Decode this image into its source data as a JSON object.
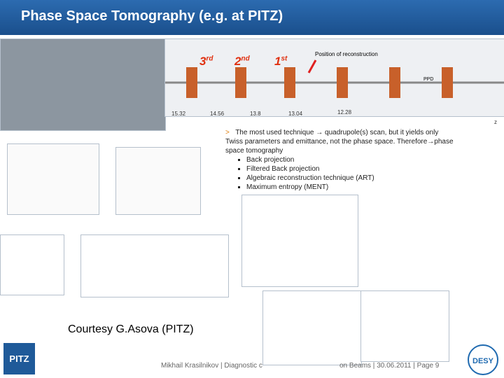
{
  "header": {
    "title": "Phase Space Tomography (e.g. at PITZ)"
  },
  "beamline": {
    "ordinals": [
      {
        "base": "3",
        "sup": "rd"
      },
      {
        "base": "2",
        "sup": "nd"
      },
      {
        "base": "1",
        "sup": "st"
      }
    ],
    "annotation": "Position of reconstruction",
    "device": "PPD",
    "positions": [
      "15.32",
      "14.56",
      "13.8",
      "13.04",
      "12.28"
    ],
    "axis": "z"
  },
  "bullets": {
    "main": "The most used technique → quadrupole(s) scan, but it yields only Twiss parameters and emittance, not the phase space. Therefore→phase space tomography",
    "items": [
      "Back projection",
      "Filtered Back projection",
      "Algebraic reconstruction technique (ART)",
      "Maximum entropy (MENT)"
    ]
  },
  "credit": "Courtesy G.Asova (PITZ)",
  "footer": {
    "author": "Mikhail Krasilnikov",
    "topic_start": "Diagnostic c",
    "topic_end": "on Beams",
    "date": "30.06.2011",
    "page": "Page 9"
  },
  "logos": {
    "left": "PITZ",
    "right": "DESY"
  }
}
